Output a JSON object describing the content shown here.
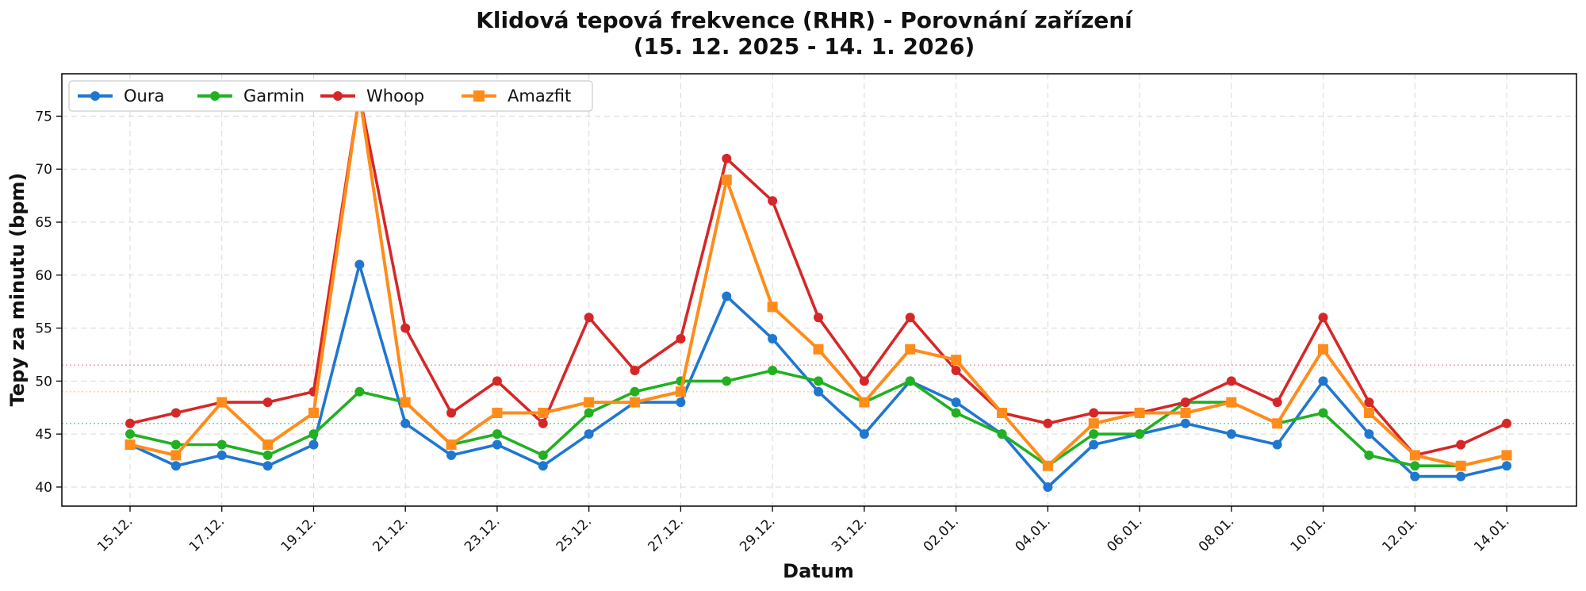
{
  "chart_data": {
    "type": "line",
    "title_line1": "Klidová tepová frekvence (RHR) - Porovnání zařízení",
    "title_line2": "(15. 12. 2025 - 14. 1. 2026)",
    "xlabel": "Datum",
    "ylabel": "Tepy za minutu (bpm)",
    "ylim": [
      38.2,
      79
    ],
    "yticks": [
      40,
      45,
      50,
      55,
      60,
      65,
      70,
      75
    ],
    "grid": true,
    "legend_position": "top-left",
    "x_tick_labels": [
      "15.12.",
      "17.12.",
      "19.12.",
      "21.12.",
      "23.12.",
      "25.12.",
      "27.12.",
      "29.12.",
      "31.12.",
      "02.01.",
      "04.01.",
      "06.01.",
      "08.01.",
      "10.01.",
      "12.01.",
      "14.01."
    ],
    "x_tick_indices": [
      0,
      2,
      4,
      6,
      8,
      10,
      12,
      14,
      16,
      18,
      20,
      22,
      24,
      26,
      28,
      30
    ],
    "dates": [
      "15.12.",
      "16.12.",
      "17.12.",
      "18.12.",
      "19.12.",
      "20.12.",
      "21.12.",
      "22.12.",
      "23.12.",
      "24.12.",
      "25.12.",
      "26.12.",
      "27.12.",
      "28.12.",
      "29.12.",
      "30.12.",
      "31.12.",
      "01.01.",
      "02.01.",
      "03.01.",
      "04.01.",
      "05.01.",
      "06.01.",
      "07.01.",
      "08.01.",
      "09.01.",
      "10.01.",
      "11.01.",
      "12.01.",
      "13.01.",
      "14.01."
    ],
    "reference_lines": [
      {
        "value": 51.5,
        "color": "#f4a6a6"
      },
      {
        "value": 49.0,
        "color": "#f8d3a8"
      },
      {
        "value": 46.0,
        "color": "#7fd49a"
      }
    ],
    "series": [
      {
        "name": "Oura",
        "color": "#1f77d0",
        "marker": "circle",
        "values": [
          44,
          42,
          43,
          42,
          44,
          61,
          46,
          43,
          44,
          42,
          45,
          48,
          48,
          58,
          54,
          49,
          45,
          50,
          48,
          45,
          40,
          44,
          45,
          46,
          45,
          44,
          50,
          45,
          41,
          41,
          42
        ]
      },
      {
        "name": "Garmin",
        "color": "#22b022",
        "marker": "circle",
        "values": [
          45,
          44,
          44,
          43,
          45,
          49,
          48,
          44,
          45,
          43,
          47,
          49,
          50,
          50,
          51,
          50,
          48,
          50,
          47,
          45,
          42,
          45,
          45,
          48,
          48,
          46,
          47,
          43,
          42,
          42,
          43
        ]
      },
      {
        "name": "Whoop",
        "color": "#d62728",
        "marker": "circle",
        "values": [
          46,
          47,
          48,
          48,
          49,
          77,
          55,
          47,
          50,
          46,
          56,
          51,
          54,
          71,
          67,
          56,
          50,
          56,
          51,
          47,
          46,
          47,
          47,
          48,
          50,
          48,
          56,
          48,
          43,
          44,
          46
        ]
      },
      {
        "name": "Amazfit",
        "color": "#ff8c1a",
        "marker": "square",
        "values": [
          44,
          43,
          48,
          44,
          47,
          77,
          48,
          44,
          47,
          47,
          48,
          48,
          49,
          69,
          57,
          53,
          48,
          53,
          52,
          47,
          42,
          46,
          47,
          47,
          48,
          46,
          53,
          47,
          43,
          42,
          43
        ]
      }
    ]
  }
}
